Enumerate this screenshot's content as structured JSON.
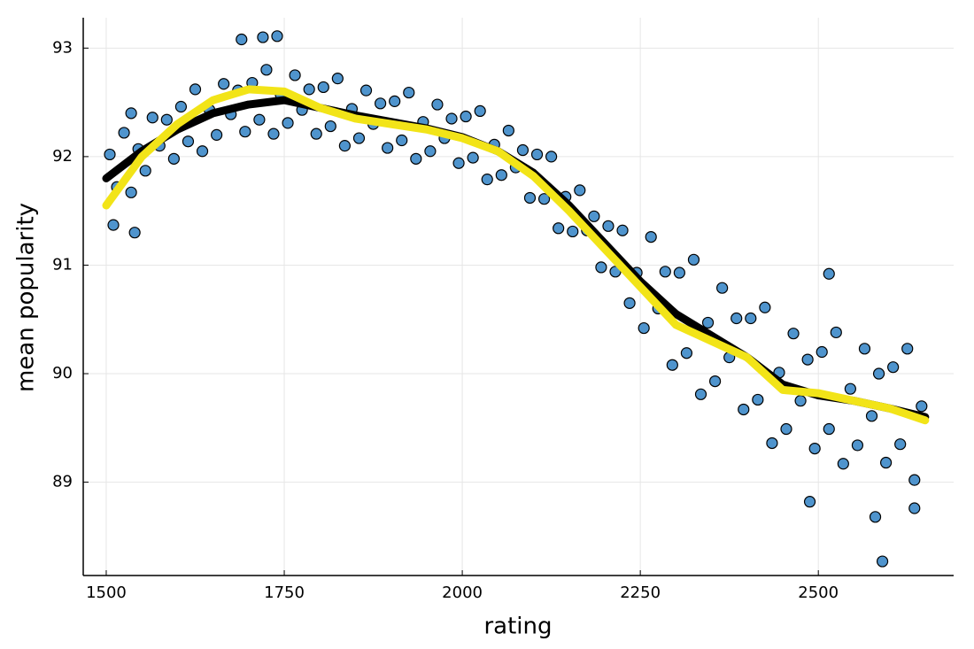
{
  "chart_data": {
    "type": "scatter",
    "xlabel": "rating",
    "ylabel": "mean popularity",
    "xlim": [
      1467.7,
      2690
    ],
    "ylim": [
      88.14,
      93.28
    ],
    "xticks": [
      1500,
      1750,
      2000,
      2250,
      2500
    ],
    "yticks": [
      89,
      90,
      91,
      92,
      93
    ],
    "grid": true,
    "series": [
      {
        "type": "scatter",
        "color": "#4f94cd",
        "x": [
          1505,
          1515,
          1525,
          1535,
          1545,
          1555,
          1565,
          1575,
          1585,
          1595,
          1605,
          1615,
          1625,
          1635,
          1645,
          1655,
          1665,
          1675,
          1685,
          1695,
          1705,
          1715,
          1725,
          1735,
          1745,
          1755,
          1765,
          1775,
          1785,
          1795,
          1805,
          1815,
          1825,
          1835,
          1845,
          1855,
          1865,
          1875,
          1885,
          1895,
          1905,
          1915,
          1925,
          1935,
          1945,
          1955,
          1965,
          1975,
          1985,
          1995,
          2005,
          2015,
          2025,
          2035,
          2045,
          2055,
          2065,
          2075,
          2085,
          2095,
          2105,
          2115,
          2125,
          2135,
          2145,
          2155,
          2165,
          2175,
          2185,
          2195,
          2205,
          2215,
          2225,
          2235,
          2245,
          2255,
          2265,
          2275,
          2285,
          2295,
          2305,
          2315,
          2325,
          2335,
          2345,
          2355,
          2365,
          2375,
          2385,
          2395,
          2405,
          2415,
          2425,
          2435,
          2445,
          2455,
          2465,
          2475,
          2485,
          2495,
          2505,
          2515,
          2525,
          2535,
          2545,
          2555,
          2565,
          2575,
          2585,
          2595,
          2605,
          2615,
          2625,
          2635,
          2645,
          1535,
          1690,
          1720,
          1740,
          2515,
          2590,
          2580,
          2488,
          1540,
          1510,
          2635
        ],
        "y": [
          92.02,
          91.72,
          92.22,
          91.67,
          92.07,
          91.87,
          92.36,
          92.1,
          92.34,
          91.98,
          92.46,
          92.14,
          92.62,
          92.05,
          92.43,
          92.2,
          92.67,
          92.39,
          92.61,
          92.23,
          92.68,
          92.34,
          92.8,
          92.21,
          92.57,
          92.31,
          92.75,
          92.43,
          92.62,
          92.21,
          92.64,
          92.28,
          92.72,
          92.1,
          92.44,
          92.17,
          92.61,
          92.3,
          92.49,
          92.08,
          92.51,
          92.15,
          92.59,
          91.98,
          92.32,
          92.05,
          92.48,
          92.17,
          92.35,
          91.94,
          92.37,
          91.99,
          92.42,
          91.79,
          92.11,
          91.83,
          92.24,
          91.9,
          92.06,
          91.62,
          92.02,
          91.61,
          92,
          91.34,
          91.63,
          91.31,
          91.69,
          91.32,
          91.45,
          90.98,
          91.36,
          90.94,
          91.32,
          90.65,
          90.93,
          90.42,
          91.26,
          90.6,
          90.94,
          90.08,
          90.93,
          90.19,
          91.05,
          89.81,
          90.47,
          89.93,
          90.79,
          90.15,
          90.51,
          89.67,
          90.51,
          89.76,
          90.61,
          89.36,
          90.01,
          89.49,
          90.37,
          89.75,
          90.13,
          89.31,
          90.2,
          89.49,
          90.38,
          89.17,
          89.86,
          89.34,
          90.23,
          89.61,
          90,
          89.18,
          90.06,
          89.35,
          90.23,
          89.02,
          89.7,
          92.4,
          93.08,
          93.1,
          93.11,
          90.92,
          88.27,
          88.68,
          88.82,
          91.3,
          91.37,
          88.76
        ]
      },
      {
        "type": "line",
        "color": "#000000",
        "x": [
          1500,
          1550,
          1600,
          1650,
          1700,
          1750,
          1800,
          1850,
          1900,
          1950,
          2000,
          2050,
          2100,
          2150,
          2200,
          2250,
          2300,
          2350,
          2400,
          2450,
          2500,
          2550,
          2600,
          2650
        ],
        "y": [
          91.8,
          92.05,
          92.25,
          92.4,
          92.48,
          92.52,
          92.45,
          92.38,
          92.32,
          92.26,
          92.18,
          92.05,
          91.85,
          91.55,
          91.2,
          90.85,
          90.55,
          90.35,
          90.15,
          89.9,
          89.8,
          89.75,
          89.68,
          89.6
        ]
      },
      {
        "type": "line",
        "color": "#f2e418",
        "x": [
          1500,
          1550,
          1600,
          1650,
          1700,
          1750,
          1800,
          1850,
          1900,
          1950,
          2000,
          2050,
          2100,
          2150,
          2200,
          2250,
          2300,
          2350,
          2400,
          2450,
          2500,
          2550,
          2600,
          2650
        ],
        "y": [
          91.55,
          92.0,
          92.3,
          92.52,
          92.62,
          92.6,
          92.45,
          92.35,
          92.3,
          92.25,
          92.17,
          92.05,
          91.82,
          91.5,
          91.15,
          90.8,
          90.45,
          90.3,
          90.15,
          89.85,
          89.82,
          89.75,
          89.68,
          89.57
        ]
      }
    ]
  }
}
